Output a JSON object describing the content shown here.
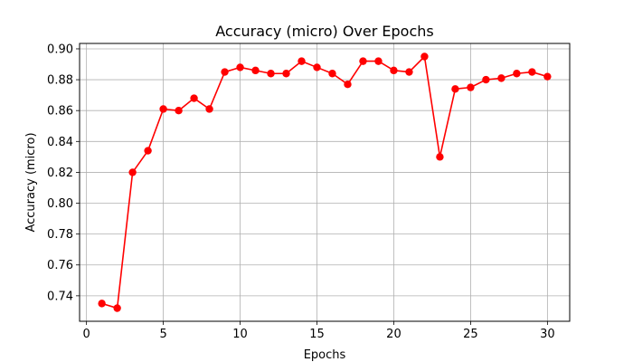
{
  "chart_data": {
    "type": "line",
    "title": "Accuracy (micro) Over Epochs",
    "xlabel": "Epochs",
    "ylabel": "Accuracy (micro)",
    "xlim": [
      -0.45,
      31.45
    ],
    "ylim": [
      0.7235,
      0.9035
    ],
    "xticks": [
      0,
      5,
      10,
      15,
      20,
      25,
      30
    ],
    "yticks": [
      0.74,
      0.76,
      0.78,
      0.8,
      0.82,
      0.84,
      0.86,
      0.88,
      0.9
    ],
    "ytick_labels": [
      "0.74",
      "0.76",
      "0.78",
      "0.80",
      "0.82",
      "0.84",
      "0.86",
      "0.88",
      "0.90"
    ],
    "grid": true,
    "series": [
      {
        "color": "#ff0000",
        "marker": "circle",
        "x": [
          1,
          2,
          3,
          4,
          5,
          6,
          7,
          8,
          9,
          10,
          11,
          12,
          13,
          14,
          15,
          16,
          17,
          18,
          19,
          20,
          21,
          22,
          23,
          24,
          25,
          26,
          27,
          28,
          29,
          30
        ],
        "y": [
          0.735,
          0.732,
          0.82,
          0.834,
          0.861,
          0.86,
          0.868,
          0.861,
          0.885,
          0.888,
          0.886,
          0.884,
          0.884,
          0.892,
          0.888,
          0.884,
          0.877,
          0.892,
          0.892,
          0.886,
          0.885,
          0.895,
          0.83,
          0.874,
          0.875,
          0.88,
          0.881,
          0.884,
          0.885,
          0.882
        ]
      }
    ]
  }
}
